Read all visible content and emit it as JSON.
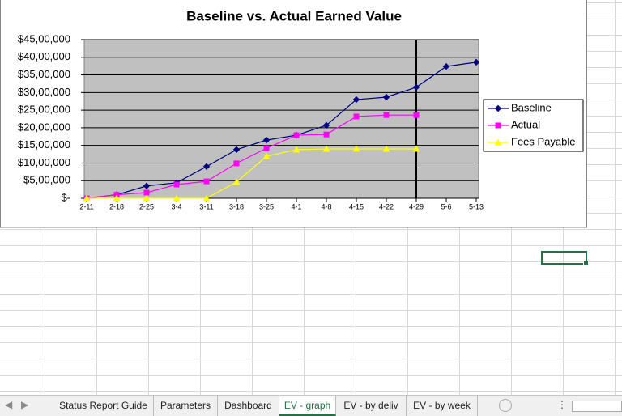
{
  "chart_data": {
    "type": "line",
    "title": "Baseline vs. Actual Earned Value",
    "categories": [
      "2-11",
      "2-18",
      "2-25",
      "3-4",
      "3-11",
      "3-18",
      "3-25",
      "4-1",
      "4-8",
      "4-15",
      "4-22",
      "4-29",
      "5-6",
      "5-13"
    ],
    "series": [
      {
        "name": "Baseline",
        "color": "#000080",
        "marker": "diamond",
        "values": [
          0,
          100000,
          350000,
          440000,
          900000,
          1380000,
          1650000,
          1790000,
          2070000,
          2800000,
          2870000,
          3150000,
          3740000,
          3860000
        ]
      },
      {
        "name": "Actual",
        "color": "#ff00ff",
        "marker": "square",
        "values": [
          0,
          100000,
          160000,
          390000,
          480000,
          990000,
          1420000,
          1790000,
          1810000,
          2320000,
          2360000,
          2360000,
          null,
          null
        ]
      },
      {
        "name": "Fees Payable",
        "color": "#ffff00",
        "marker": "triangle",
        "values": [
          0,
          0,
          0,
          0,
          0,
          460000,
          1190000,
          1380000,
          1400000,
          1400000,
          1400000,
          1400000,
          null,
          null
        ]
      }
    ],
    "ylim": [
      0,
      4500000
    ],
    "yticks": [
      {
        "value": 0,
        "label": "$-"
      },
      {
        "value": 500000,
        "label": "$5,00,000"
      },
      {
        "value": 1000000,
        "label": "$10,00,000"
      },
      {
        "value": 1500000,
        "label": "$15,00,000"
      },
      {
        "value": 2000000,
        "label": "$20,00,000"
      },
      {
        "value": 2500000,
        "label": "$25,00,000"
      },
      {
        "value": 3000000,
        "label": "$30,00,000"
      },
      {
        "value": 3500000,
        "label": "$35,00,000"
      },
      {
        "value": 4000000,
        "label": "$40,00,000"
      },
      {
        "value": 4500000,
        "label": "$45,00,000"
      }
    ],
    "grid": true,
    "legend": "right"
  },
  "sheet_tabs": [
    "Status Report Guide",
    "Parameters",
    "Dashboard",
    "EV - graph",
    "EV - by deliv",
    "EV - by week"
  ],
  "active_tab_index": 3
}
